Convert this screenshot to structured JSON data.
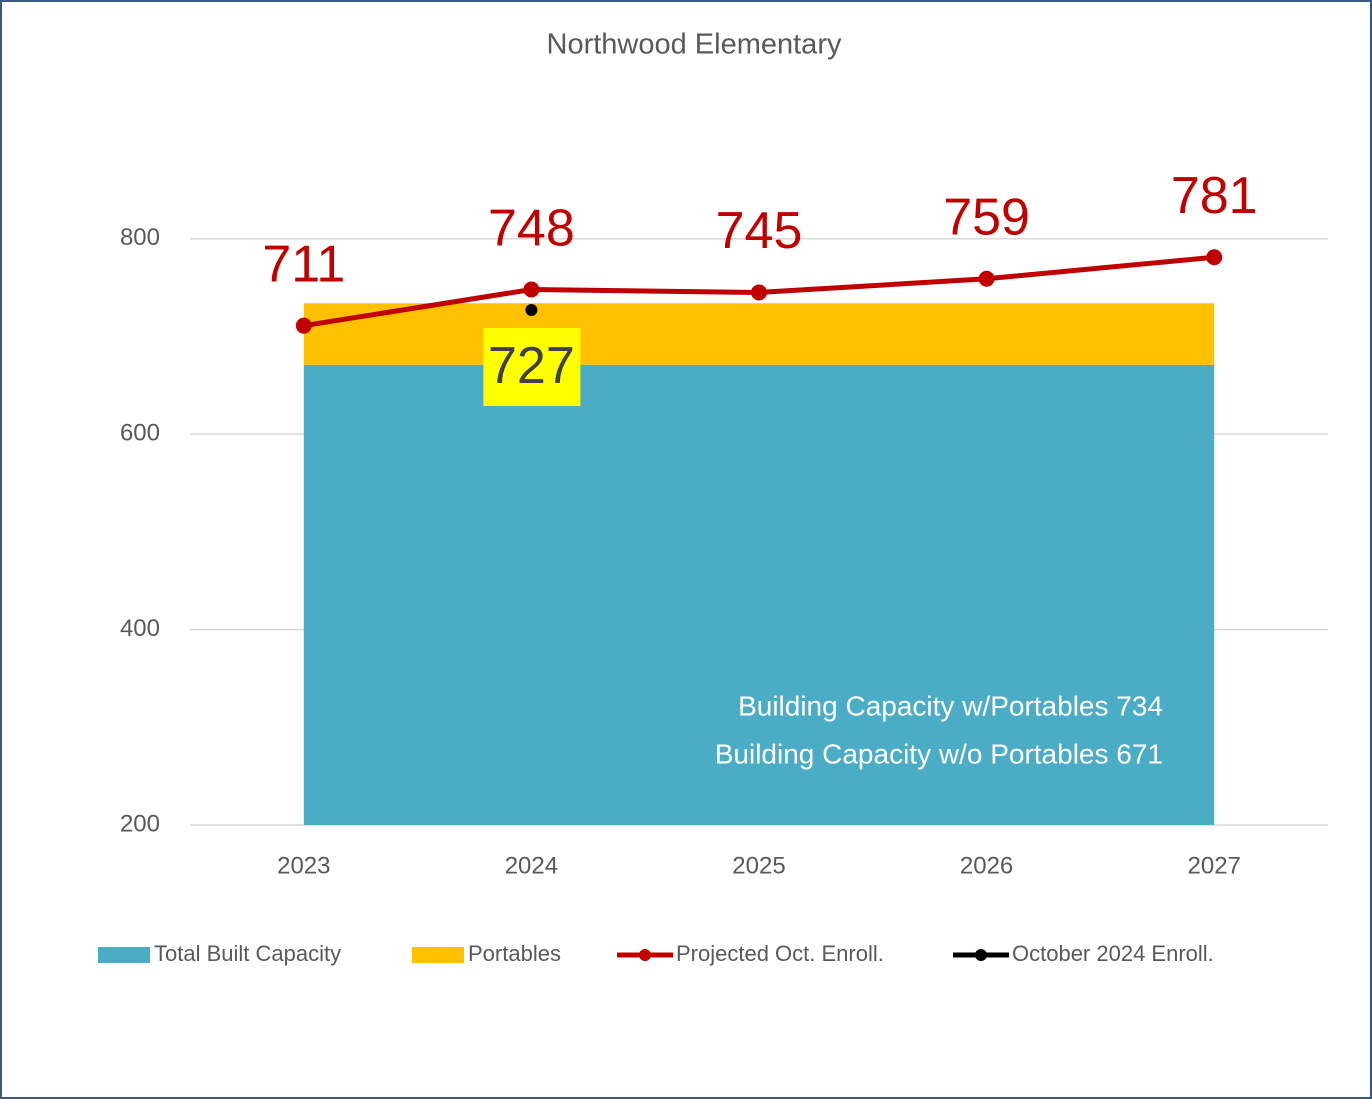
{
  "chart_data": {
    "type": "combo",
    "title": "Northwood Elementary",
    "categories": [
      "2023",
      "2024",
      "2025",
      "2026",
      "2027"
    ],
    "series": [
      {
        "name": "Total Built Capacity",
        "type": "area",
        "color": "#4bacc6",
        "values": [
          671,
          671,
          671,
          671,
          671
        ]
      },
      {
        "name": "Portables",
        "type": "area",
        "color": "#ffc000",
        "values": [
          63,
          63,
          63,
          63,
          63
        ]
      },
      {
        "name": "Projected Oct. Enroll.",
        "type": "line",
        "color": "#c00000",
        "values": [
          711,
          748,
          745,
          759,
          781
        ]
      },
      {
        "name": "October 2024 Enroll.",
        "type": "line",
        "color": "#000000",
        "values": [
          null,
          727,
          null,
          null,
          null
        ]
      }
    ],
    "annotations": [
      "Building Capacity w/Portables 734",
      "Building Capacity w/o Portables 671"
    ],
    "ylim": [
      200,
      900
    ],
    "yticks": [
      200,
      400,
      600,
      800
    ],
    "grid": true,
    "legend": "bottom"
  }
}
